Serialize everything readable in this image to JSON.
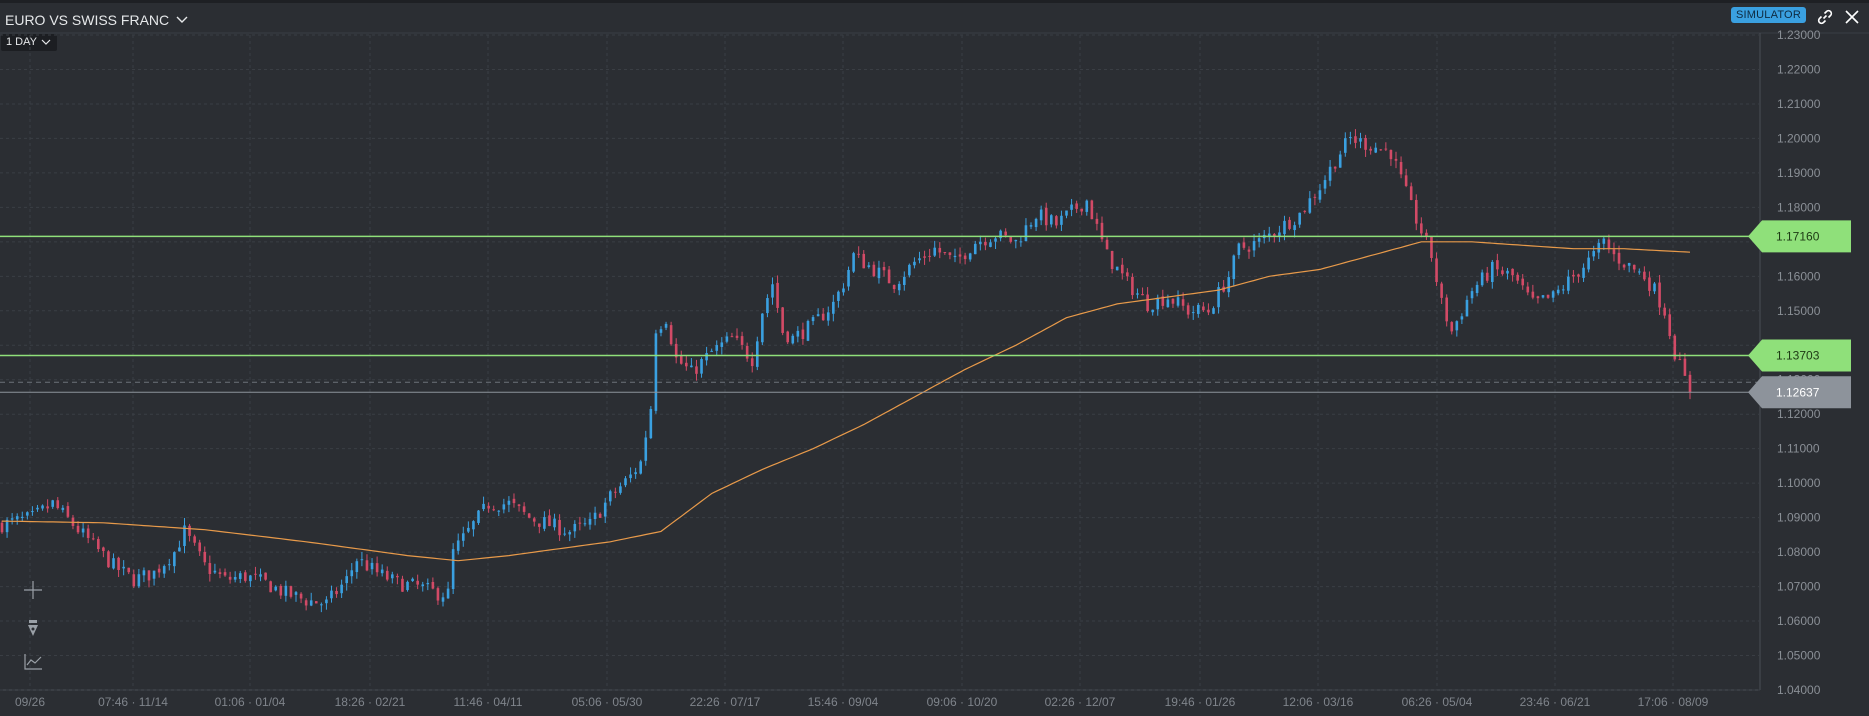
{
  "header": {
    "title": "EURO VS SWISS FRANC",
    "timeframe": "1 DAY",
    "badge": "SIMULATOR"
  },
  "colors": {
    "background": "#2b2e33",
    "grid": "#3a3e44",
    "up_candle": "#3aa0e0",
    "down_candle": "#d24a66",
    "moving_average": "#e89a4a",
    "level_line": "#8fe07a",
    "last_price": "#8d939b"
  },
  "tools": [
    "crosshair-icon",
    "pen-icon",
    "indicator-icon"
  ],
  "chart_data": {
    "type": "candlestick",
    "y_axis": {
      "min": 1.04,
      "max": 1.23,
      "ticks": [
        "1.23000",
        "1.22000",
        "1.21000",
        "1.20000",
        "1.19000",
        "1.18000",
        "1.17000",
        "1.16000",
        "1.15000",
        "1.14000",
        "1.13000",
        "1.12000",
        "1.11000",
        "1.10000",
        "1.09000",
        "1.08000",
        "1.07000",
        "1.06000",
        "1.05000",
        "1.04000"
      ]
    },
    "x_axis": {
      "ticks": [
        "09/26",
        "07:46 · 11/14",
        "01:06 · 01/04",
        "18:26 · 02/21",
        "11:46 · 04/11",
        "05:06 · 05/30",
        "22:26 · 07/17",
        "15:46 · 09/04",
        "09:06 · 10/20",
        "02:26 · 12/07",
        "19:46 · 01/26",
        "12:06 · 03/16",
        "06:26 · 05/04",
        "23:46 · 06/21",
        "17:06 · 08/09"
      ]
    },
    "price_trend": [
      [
        0,
        1.088
      ],
      [
        6,
        1.09
      ],
      [
        10,
        1.094
      ],
      [
        14,
        1.088
      ],
      [
        18,
        1.082
      ],
      [
        22,
        1.076
      ],
      [
        26,
        1.072
      ],
      [
        30,
        1.074
      ],
      [
        34,
        1.08
      ],
      [
        36,
        1.086
      ],
      [
        40,
        1.076
      ],
      [
        44,
        1.072
      ],
      [
        48,
        1.073
      ],
      [
        52,
        1.071
      ],
      [
        56,
        1.068
      ],
      [
        60,
        1.066
      ],
      [
        64,
        1.065
      ],
      [
        68,
        1.072
      ],
      [
        70,
        1.078
      ],
      [
        74,
        1.074
      ],
      [
        78,
        1.071
      ],
      [
        82,
        1.07
      ],
      [
        86,
        1.068
      ],
      [
        88,
        1.068
      ],
      [
        89,
        1.08
      ],
      [
        92,
        1.086
      ],
      [
        96,
        1.094
      ],
      [
        100,
        1.094
      ],
      [
        104,
        1.09
      ],
      [
        108,
        1.088
      ],
      [
        112,
        1.086
      ],
      [
        116,
        1.088
      ],
      [
        120,
        1.096
      ],
      [
        124,
        1.102
      ],
      [
        126,
        1.106
      ],
      [
        128,
        1.122
      ],
      [
        129,
        1.145
      ],
      [
        131,
        1.148
      ],
      [
        133,
        1.136
      ],
      [
        136,
        1.132
      ],
      [
        140,
        1.138
      ],
      [
        144,
        1.142
      ],
      [
        148,
        1.136
      ],
      [
        150,
        1.15
      ],
      [
        152,
        1.158
      ],
      [
        154,
        1.144
      ],
      [
        156,
        1.142
      ],
      [
        160,
        1.146
      ],
      [
        164,
        1.152
      ],
      [
        166,
        1.158
      ],
      [
        168,
        1.166
      ],
      [
        172,
        1.162
      ],
      [
        176,
        1.158
      ],
      [
        180,
        1.164
      ],
      [
        184,
        1.168
      ],
      [
        188,
        1.164
      ],
      [
        192,
        1.17
      ],
      [
        196,
        1.172
      ],
      [
        200,
        1.17
      ],
      [
        204,
        1.178
      ],
      [
        208,
        1.175
      ],
      [
        212,
        1.18
      ],
      [
        214,
        1.182
      ],
      [
        216,
        1.174
      ],
      [
        218,
        1.166
      ],
      [
        222,
        1.158
      ],
      [
        226,
        1.152
      ],
      [
        230,
        1.154
      ],
      [
        234,
        1.15
      ],
      [
        238,
        1.15
      ],
      [
        242,
        1.16
      ],
      [
        244,
        1.168
      ],
      [
        248,
        1.17
      ],
      [
        252,
        1.174
      ],
      [
        256,
        1.178
      ],
      [
        260,
        1.186
      ],
      [
        264,
        1.196
      ],
      [
        266,
        1.2
      ],
      [
        270,
        1.198
      ],
      [
        274,
        1.196
      ],
      [
        276,
        1.188
      ],
      [
        278,
        1.18
      ],
      [
        282,
        1.166
      ],
      [
        284,
        1.152
      ],
      [
        286,
        1.144
      ],
      [
        290,
        1.156
      ],
      [
        294,
        1.162
      ],
      [
        298,
        1.16
      ],
      [
        302,
        1.152
      ],
      [
        306,
        1.154
      ],
      [
        310,
        1.16
      ],
      [
        314,
        1.166
      ],
      [
        316,
        1.17
      ],
      [
        318,
        1.166
      ],
      [
        322,
        1.162
      ],
      [
        324,
        1.16
      ],
      [
        326,
        1.156
      ],
      [
        328,
        1.15
      ],
      [
        330,
        1.138
      ],
      [
        332,
        1.13
      ],
      [
        333,
        1.127
      ]
    ],
    "moving_average": [
      [
        0,
        1.089
      ],
      [
        20,
        1.0885
      ],
      [
        40,
        1.0865
      ],
      [
        60,
        1.083
      ],
      [
        80,
        1.079
      ],
      [
        90,
        1.0775
      ],
      [
        100,
        1.079
      ],
      [
        110,
        1.081
      ],
      [
        120,
        1.083
      ],
      [
        130,
        1.086
      ],
      [
        140,
        1.097
      ],
      [
        150,
        1.104
      ],
      [
        160,
        1.11
      ],
      [
        170,
        1.117
      ],
      [
        180,
        1.125
      ],
      [
        190,
        1.133
      ],
      [
        200,
        1.14
      ],
      [
        210,
        1.148
      ],
      [
        220,
        1.152
      ],
      [
        230,
        1.154
      ],
      [
        240,
        1.156
      ],
      [
        250,
        1.16
      ],
      [
        260,
        1.162
      ],
      [
        270,
        1.166
      ],
      [
        280,
        1.17
      ],
      [
        290,
        1.17
      ],
      [
        300,
        1.169
      ],
      [
        310,
        1.168
      ],
      [
        320,
        1.168
      ],
      [
        333,
        1.167
      ]
    ],
    "candle_count": 334,
    "levels": [
      {
        "value": "1.17160",
        "color": "#8fe07a"
      },
      {
        "value": "1.13703",
        "color": "#8fe07a"
      }
    ],
    "last_price": "1.12637"
  }
}
